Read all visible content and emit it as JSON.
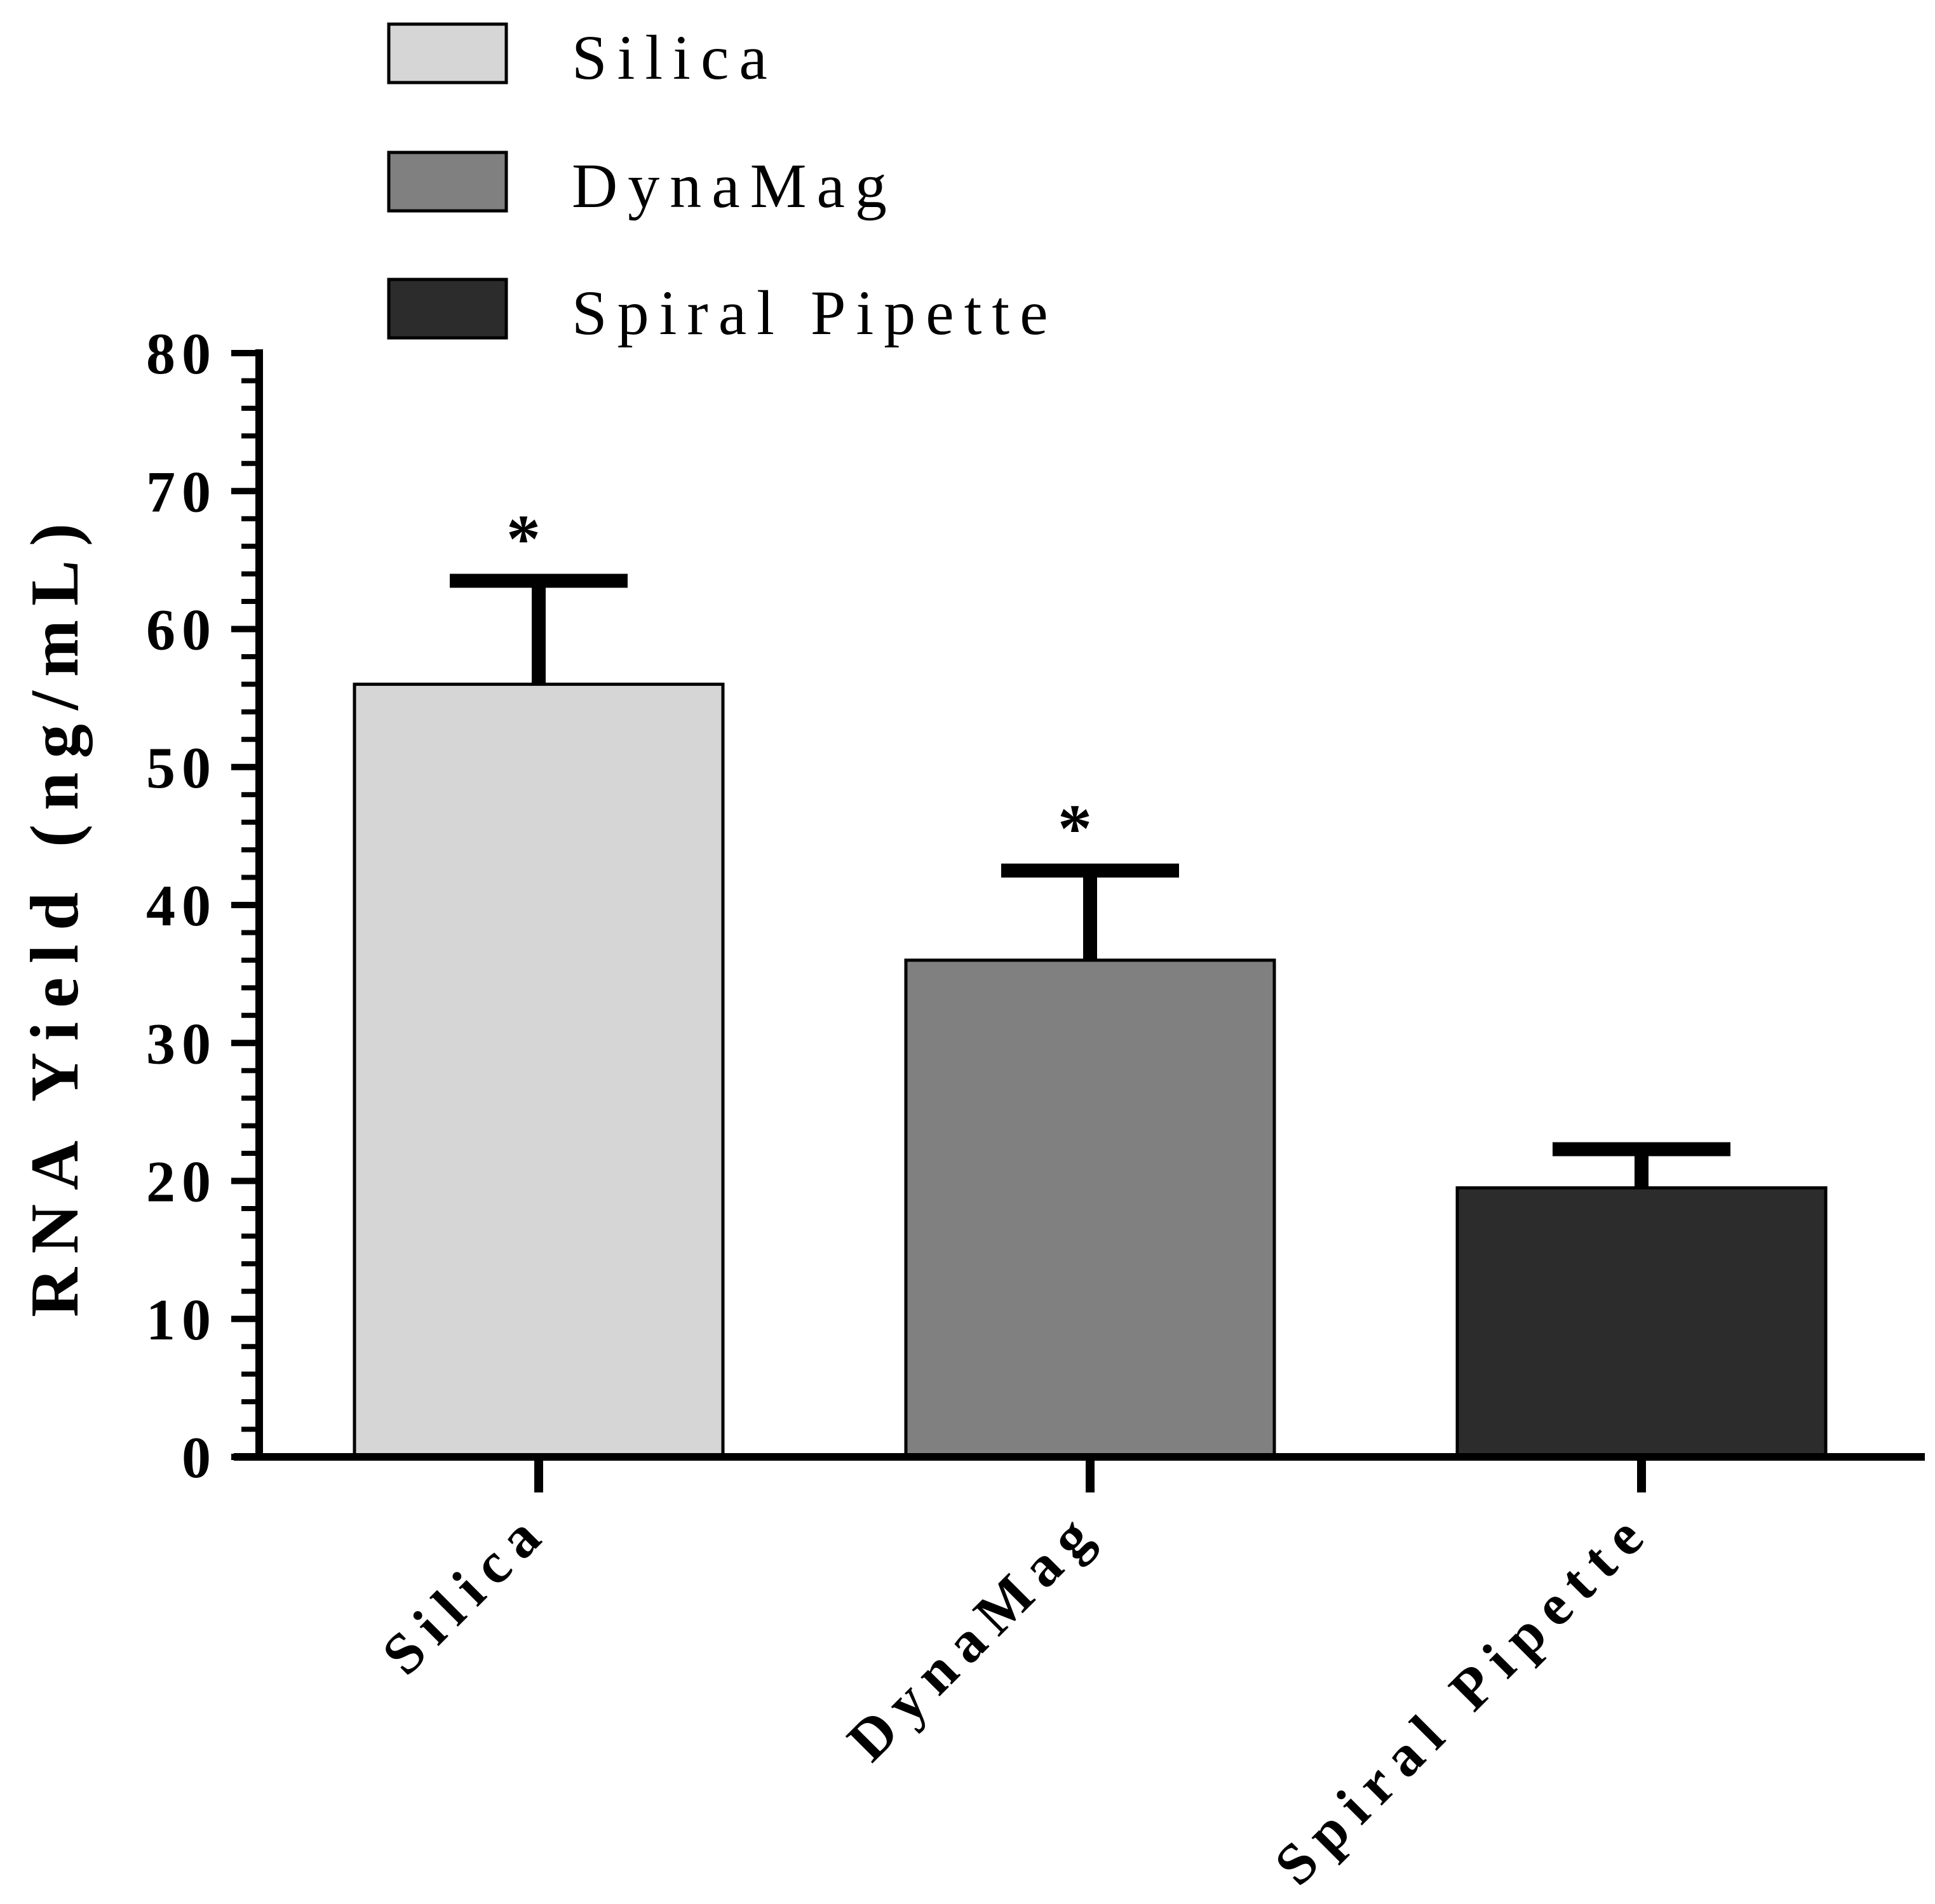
{
  "chart_data": {
    "type": "bar",
    "title": "",
    "categories": [
      "Silica",
      "DynaMag",
      "Spiral Pipette"
    ],
    "series": [
      {
        "name": "RNA Yield",
        "values": [
          56,
          36,
          19.5
        ],
        "errors": [
          7.5,
          6.5,
          2.8
        ],
        "significance": [
          "*",
          "*",
          ""
        ]
      }
    ],
    "legend": {
      "placement": "top-left",
      "entries": [
        "Silica",
        "DynaMag",
        "Spiral Pipette"
      ]
    },
    "xlabel": "",
    "ylabel": "RNA Yield (ng/mL)",
    "ylim": [
      0,
      80
    ],
    "yticks": [
      "0",
      "10",
      "20",
      "30",
      "40",
      "50",
      "60",
      "70",
      "80"
    ],
    "minor_ticks_per_major": 5,
    "grid": false,
    "colors": [
      "#d6d6d6",
      "#808080",
      "#2c2c2c"
    ],
    "axis_color": "#000000"
  }
}
